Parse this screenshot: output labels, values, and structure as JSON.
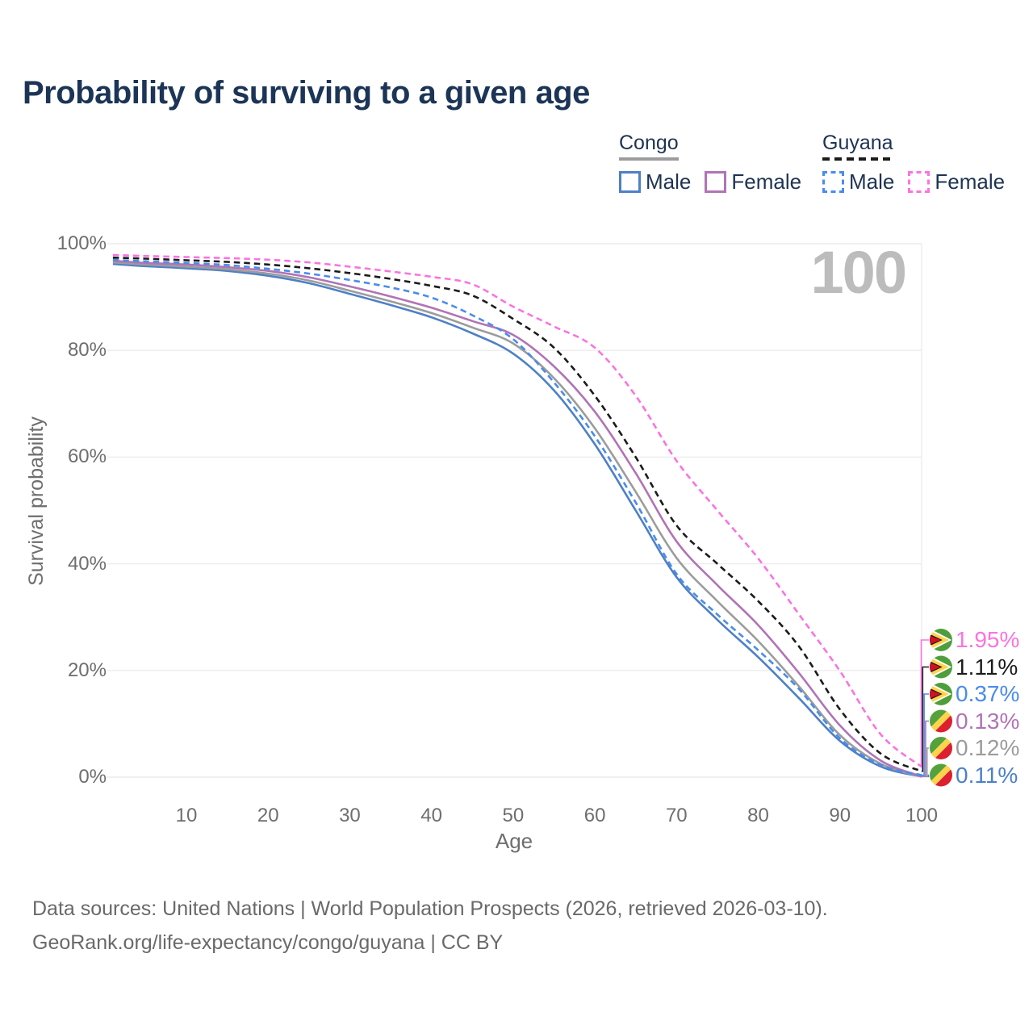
{
  "title": "Probability of surviving to a given age",
  "watermark": "100",
  "legend": {
    "groups": [
      {
        "country": "Congo",
        "line_style": "solid",
        "underline_color": "#9c9c9c",
        "items": [
          {
            "label": "Male",
            "color": "#4e80c6"
          },
          {
            "label": "Female",
            "color": "#b173b6"
          }
        ]
      },
      {
        "country": "Guyana",
        "line_style": "dashed",
        "underline_color": "#1b1b1b",
        "items": [
          {
            "label": "Male",
            "color": "#4a8ceb"
          },
          {
            "label": "Female",
            "color": "#fb73df"
          }
        ]
      }
    ]
  },
  "flag_colors": {
    "congo": {
      "green": "#55a23c",
      "yellow": "#fbd44b",
      "red": "#dc2030"
    },
    "guyana": {
      "green": "#4f9e3c",
      "white": "#ffffff",
      "yellow": "#ffd24a",
      "black": "#151515",
      "red": "#ce1126"
    }
  },
  "chart_data": {
    "type": "line",
    "title": "Probability of surviving to a given age",
    "xlabel": "Age",
    "ylabel": "Survival probability",
    "xlim": [
      0,
      100
    ],
    "ylim": [
      0,
      100
    ],
    "grid": "horizontal",
    "xticks": [
      10,
      20,
      30,
      40,
      50,
      60,
      70,
      80,
      90,
      100
    ],
    "ytick_values": [
      0,
      20,
      40,
      60,
      80,
      100
    ],
    "ytick_labels": [
      "0%",
      "20%",
      "40%",
      "60%",
      "80%",
      "100%"
    ],
    "x": [
      1,
      5,
      10,
      15,
      20,
      25,
      30,
      35,
      40,
      45,
      50,
      55,
      60,
      65,
      70,
      75,
      80,
      85,
      90,
      95,
      100
    ],
    "series": [
      {
        "name": "Congo Male",
        "country": "Congo",
        "sex": "Male",
        "color": "#4e80c6",
        "dashed": false,
        "flag": "congo",
        "end_label": "0.11%",
        "end_row": 5,
        "values": [
          96.2,
          95.8,
          95.4,
          94.9,
          94.0,
          92.6,
          90.6,
          88.5,
          86.2,
          83.2,
          79.4,
          72.5,
          62.4,
          50.0,
          37.5,
          29.5,
          22.5,
          14.8,
          6.8,
          2.0,
          0.11
        ]
      },
      {
        "name": "Congo (both sexes)",
        "country": "Congo",
        "sex": "Both",
        "color": "#9c9c9c",
        "dashed": false,
        "flag": "congo",
        "end_label": "0.12%",
        "end_row": 4,
        "values": [
          96.5,
          96.1,
          95.7,
          95.2,
          94.4,
          93.1,
          91.2,
          89.2,
          87.0,
          84.3,
          81.3,
          74.8,
          65.4,
          53.5,
          41.1,
          33.0,
          25.5,
          17.0,
          7.9,
          2.5,
          0.12
        ]
      },
      {
        "name": "Congo Female",
        "country": "Congo",
        "sex": "Female",
        "color": "#b173b6",
        "dashed": false,
        "flag": "congo",
        "end_label": "0.13%",
        "end_row": 3,
        "values": [
          96.8,
          96.4,
          96.1,
          95.6,
          94.9,
          93.7,
          92.0,
          90.1,
          88.0,
          85.5,
          82.9,
          77.0,
          68.5,
          57.0,
          44.2,
          36.0,
          28.5,
          19.5,
          9.7,
          3.1,
          0.13
        ]
      },
      {
        "name": "Guyana Male",
        "country": "Guyana",
        "sex": "Male",
        "color": "#4a8ceb",
        "dashed": true,
        "flag": "guyana",
        "end_label": "0.37%",
        "end_row": 2,
        "values": [
          97.0,
          96.7,
          96.4,
          96.0,
          95.3,
          94.4,
          93.2,
          91.8,
          89.9,
          86.6,
          82.1,
          74.0,
          63.9,
          51.5,
          38.1,
          30.5,
          23.8,
          16.5,
          7.3,
          2.3,
          0.37
        ]
      },
      {
        "name": "Guyana (both sexes)",
        "country": "Guyana",
        "sex": "Both",
        "color": "#1b1b1b",
        "dashed": true,
        "flag": "guyana",
        "end_label": "1.11%",
        "end_row": 1,
        "values": [
          97.4,
          97.2,
          96.9,
          96.6,
          96.1,
          95.4,
          94.5,
          93.4,
          92.1,
          90.3,
          85.9,
          80.5,
          71.5,
          60.0,
          47.2,
          40.0,
          33.0,
          24.5,
          12.7,
          4.4,
          1.11
        ]
      },
      {
        "name": "Guyana Female",
        "country": "Guyana",
        "sex": "Female",
        "color": "#fb73df",
        "dashed": true,
        "flag": "guyana",
        "end_label": "1.95%",
        "end_row": 0,
        "values": [
          97.9,
          97.7,
          97.5,
          97.3,
          97.0,
          96.5,
          95.7,
          94.8,
          93.8,
          92.4,
          88.2,
          84.5,
          80.5,
          71.5,
          59.3,
          50.0,
          41.0,
          30.5,
          19.9,
          8.0,
          1.95
        ]
      }
    ]
  },
  "footer": {
    "line1": "Data sources: United Nations | World Population Prospects (2026, retrieved 2026-03-10).",
    "line2": "GeoRank.org/life-expectancy/congo/guyana | CC BY"
  }
}
